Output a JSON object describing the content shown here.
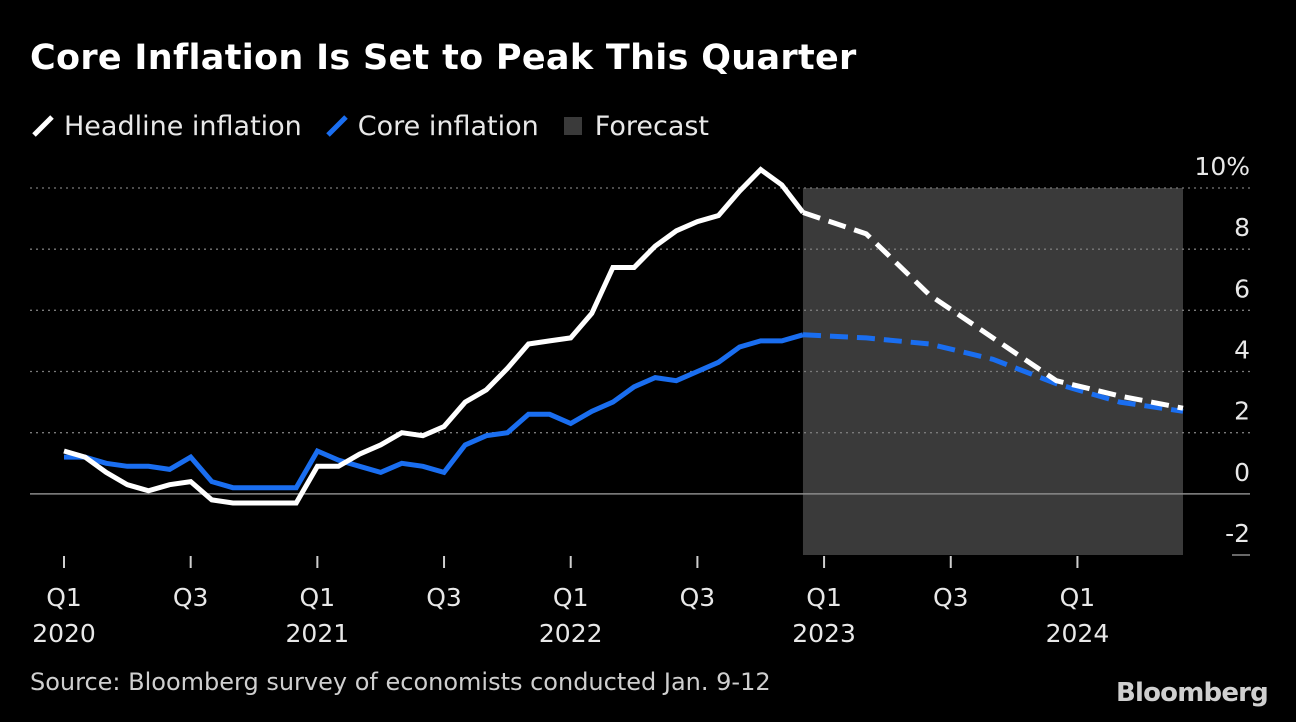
{
  "chart_data": {
    "type": "line",
    "title": "Core Inflation Is Set to Peak This Quarter",
    "source": "Source: Bloomberg survey of economists conducted Jan. 9-12",
    "logo": "Bloomberg",
    "legend": {
      "placement": "top-left",
      "items": [
        {
          "name": "Headline inflation",
          "color": "#ffffff",
          "kind": "line"
        },
        {
          "name": "Core inflation",
          "color": "#1a6ef0",
          "kind": "line"
        },
        {
          "name": "Forecast",
          "color": "#3a3a3a",
          "kind": "box"
        }
      ]
    },
    "y_axis": {
      "ylim": [
        -2,
        10
      ],
      "ticks": [
        -2,
        0,
        2,
        4,
        6,
        8,
        10
      ],
      "tick_labels": [
        "-2",
        "0",
        "2",
        "4",
        "6",
        "8",
        "10%"
      ],
      "side": "right",
      "grid": "dotted"
    },
    "x_axis": {
      "xlim": [
        "2020-01",
        "2024-06"
      ],
      "ticks": [
        {
          "t": "2020-01",
          "label": "Q1",
          "year": "2020"
        },
        {
          "t": "2020-07",
          "label": "Q3",
          "year": ""
        },
        {
          "t": "2021-01",
          "label": "Q1",
          "year": "2021"
        },
        {
          "t": "2021-07",
          "label": "Q3",
          "year": ""
        },
        {
          "t": "2022-01",
          "label": "Q1",
          "year": "2022"
        },
        {
          "t": "2022-07",
          "label": "Q3",
          "year": ""
        },
        {
          "t": "2023-01",
          "label": "Q1",
          "year": "2023"
        },
        {
          "t": "2023-07",
          "label": "Q3",
          "year": ""
        },
        {
          "t": "2024-01",
          "label": "Q1",
          "year": "2024"
        }
      ]
    },
    "forecast_region": {
      "start": "2022-12",
      "end": "2024-06"
    },
    "series": [
      {
        "name": "Headline inflation",
        "color": "#ffffff",
        "actual": [
          {
            "t": "2020-01",
            "y": 1.4
          },
          {
            "t": "2020-02",
            "y": 1.2
          },
          {
            "t": "2020-03",
            "y": 0.7
          },
          {
            "t": "2020-04",
            "y": 0.3
          },
          {
            "t": "2020-05",
            "y": 0.1
          },
          {
            "t": "2020-06",
            "y": 0.3
          },
          {
            "t": "2020-07",
            "y": 0.4
          },
          {
            "t": "2020-08",
            "y": -0.2
          },
          {
            "t": "2020-09",
            "y": -0.3
          },
          {
            "t": "2020-10",
            "y": -0.3
          },
          {
            "t": "2020-11",
            "y": -0.3
          },
          {
            "t": "2020-12",
            "y": -0.3
          },
          {
            "t": "2021-01",
            "y": 0.9
          },
          {
            "t": "2021-02",
            "y": 0.9
          },
          {
            "t": "2021-03",
            "y": 1.3
          },
          {
            "t": "2021-04",
            "y": 1.6
          },
          {
            "t": "2021-05",
            "y": 2.0
          },
          {
            "t": "2021-06",
            "y": 1.9
          },
          {
            "t": "2021-07",
            "y": 2.2
          },
          {
            "t": "2021-08",
            "y": 3.0
          },
          {
            "t": "2021-09",
            "y": 3.4
          },
          {
            "t": "2021-10",
            "y": 4.1
          },
          {
            "t": "2021-11",
            "y": 4.9
          },
          {
            "t": "2021-12",
            "y": 5.0
          },
          {
            "t": "2022-01",
            "y": 5.1
          },
          {
            "t": "2022-02",
            "y": 5.9
          },
          {
            "t": "2022-03",
            "y": 7.4
          },
          {
            "t": "2022-04",
            "y": 7.4
          },
          {
            "t": "2022-05",
            "y": 8.1
          },
          {
            "t": "2022-06",
            "y": 8.6
          },
          {
            "t": "2022-07",
            "y": 8.9
          },
          {
            "t": "2022-08",
            "y": 9.1
          },
          {
            "t": "2022-09",
            "y": 9.9
          },
          {
            "t": "2022-10",
            "y": 10.6
          },
          {
            "t": "2022-11",
            "y": 10.1
          },
          {
            "t": "2022-12",
            "y": 9.2
          }
        ],
        "forecast": [
          {
            "t": "2022-12",
            "y": 9.2
          },
          {
            "t": "2023-03",
            "y": 8.5
          },
          {
            "t": "2023-06",
            "y": 6.5
          },
          {
            "t": "2023-09",
            "y": 5.1
          },
          {
            "t": "2023-12",
            "y": 3.7
          },
          {
            "t": "2024-03",
            "y": 3.2
          },
          {
            "t": "2024-06",
            "y": 2.8
          }
        ]
      },
      {
        "name": "Core inflation",
        "color": "#1a6ef0",
        "actual": [
          {
            "t": "2020-01",
            "y": 1.2
          },
          {
            "t": "2020-02",
            "y": 1.2
          },
          {
            "t": "2020-03",
            "y": 1.0
          },
          {
            "t": "2020-04",
            "y": 0.9
          },
          {
            "t": "2020-05",
            "y": 0.9
          },
          {
            "t": "2020-06",
            "y": 0.8
          },
          {
            "t": "2020-07",
            "y": 1.2
          },
          {
            "t": "2020-08",
            "y": 0.4
          },
          {
            "t": "2020-09",
            "y": 0.2
          },
          {
            "t": "2020-10",
            "y": 0.2
          },
          {
            "t": "2020-11",
            "y": 0.2
          },
          {
            "t": "2020-12",
            "y": 0.2
          },
          {
            "t": "2021-01",
            "y": 1.4
          },
          {
            "t": "2021-02",
            "y": 1.1
          },
          {
            "t": "2021-03",
            "y": 0.9
          },
          {
            "t": "2021-04",
            "y": 0.7
          },
          {
            "t": "2021-05",
            "y": 1.0
          },
          {
            "t": "2021-06",
            "y": 0.9
          },
          {
            "t": "2021-07",
            "y": 0.7
          },
          {
            "t": "2021-08",
            "y": 1.6
          },
          {
            "t": "2021-09",
            "y": 1.9
          },
          {
            "t": "2021-10",
            "y": 2.0
          },
          {
            "t": "2021-11",
            "y": 2.6
          },
          {
            "t": "2021-12",
            "y": 2.6
          },
          {
            "t": "2022-01",
            "y": 2.3
          },
          {
            "t": "2022-02",
            "y": 2.7
          },
          {
            "t": "2022-03",
            "y": 3.0
          },
          {
            "t": "2022-04",
            "y": 3.5
          },
          {
            "t": "2022-05",
            "y": 3.8
          },
          {
            "t": "2022-06",
            "y": 3.7
          },
          {
            "t": "2022-07",
            "y": 4.0
          },
          {
            "t": "2022-08",
            "y": 4.3
          },
          {
            "t": "2022-09",
            "y": 4.8
          },
          {
            "t": "2022-10",
            "y": 5.0
          },
          {
            "t": "2022-11",
            "y": 5.0
          },
          {
            "t": "2022-12",
            "y": 5.2
          }
        ],
        "forecast": [
          {
            "t": "2022-12",
            "y": 5.2
          },
          {
            "t": "2023-03",
            "y": 5.1
          },
          {
            "t": "2023-06",
            "y": 4.9
          },
          {
            "t": "2023-09",
            "y": 4.4
          },
          {
            "t": "2023-12",
            "y": 3.6
          },
          {
            "t": "2024-03",
            "y": 3.0
          },
          {
            "t": "2024-06",
            "y": 2.7
          }
        ]
      }
    ]
  }
}
